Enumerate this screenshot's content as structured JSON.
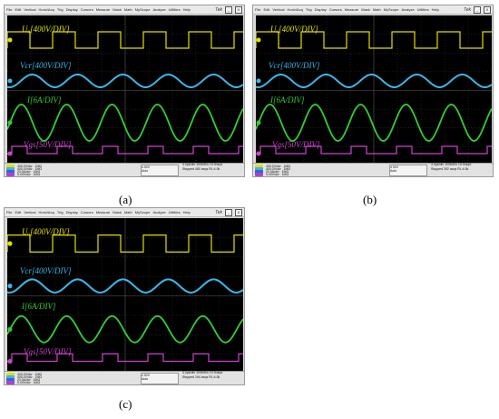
{
  "menu": [
    "File",
    "Edit",
    "Vertical",
    "Horiz/Acq",
    "Trig",
    "Display",
    "Cursors",
    "Measure",
    "Mask",
    "Math",
    "MyScope",
    "Analyze",
    "Utilities",
    "Help"
  ],
  "logo": "Tek",
  "window_buttons": [
    "_",
    "X"
  ],
  "channels": [
    {
      "key": "uo",
      "label": "Uₒ[400V/DIV]",
      "color": "#e0e000",
      "marker": "1"
    },
    {
      "key": "vcr",
      "label": "Vcr[400V/DIV]",
      "color": "#3ab7e8",
      "marker": "2"
    },
    {
      "key": "il",
      "label": "I[6A/DIV]",
      "color": "#33cc33",
      "marker": "3"
    },
    {
      "key": "vgs",
      "label": "Vgs[50V/DIV]",
      "color": "#cc44cc",
      "marker": "4"
    }
  ],
  "status_channels": [
    {
      "color": "#e0e000",
      "scale": "400.0V/div",
      "bw": "1MΩ",
      "bw2": "500M"
    },
    {
      "color": "#3ab7e8",
      "scale": "400.0V/div",
      "bw": "1MΩ",
      "bw2": "500M"
    },
    {
      "color": "#3a62d8",
      "scale": "20.0A/div",
      "bw": "1MΩ",
      "bw2": "500M"
    },
    {
      "color": "#aa44cc",
      "scale": "5.00V/div",
      "bw": "1MΩ",
      "bw2": "500M"
    }
  ],
  "panels": [
    {
      "id": "a",
      "caption": "(a)",
      "trigger": "4 52V",
      "mode": "Auto",
      "acq": [
        "4.0μs/div",
        "100MS/s",
        "10.0ns/pt",
        "Stopped",
        "460 acqs",
        "RL:4.0k",
        "Auto"
      ]
    },
    {
      "id": "b",
      "caption": "(b)",
      "trigger": "4 52V",
      "mode": "Auto",
      "acq": [
        "4.0μs/div",
        "100MS/s",
        "10.0ns/pt",
        "Stopped",
        "392 acqs",
        "RL:4.0k",
        "Auto"
      ]
    },
    {
      "id": "c",
      "caption": "(c)",
      "trigger": "4 52V",
      "mode": "Auto",
      "acq": [
        "4.0μs/div",
        "100MS/s",
        "10.0ns/pt",
        "Stopped",
        "194 acqs",
        "RL:4.0k",
        "Auto"
      ]
    }
  ]
}
